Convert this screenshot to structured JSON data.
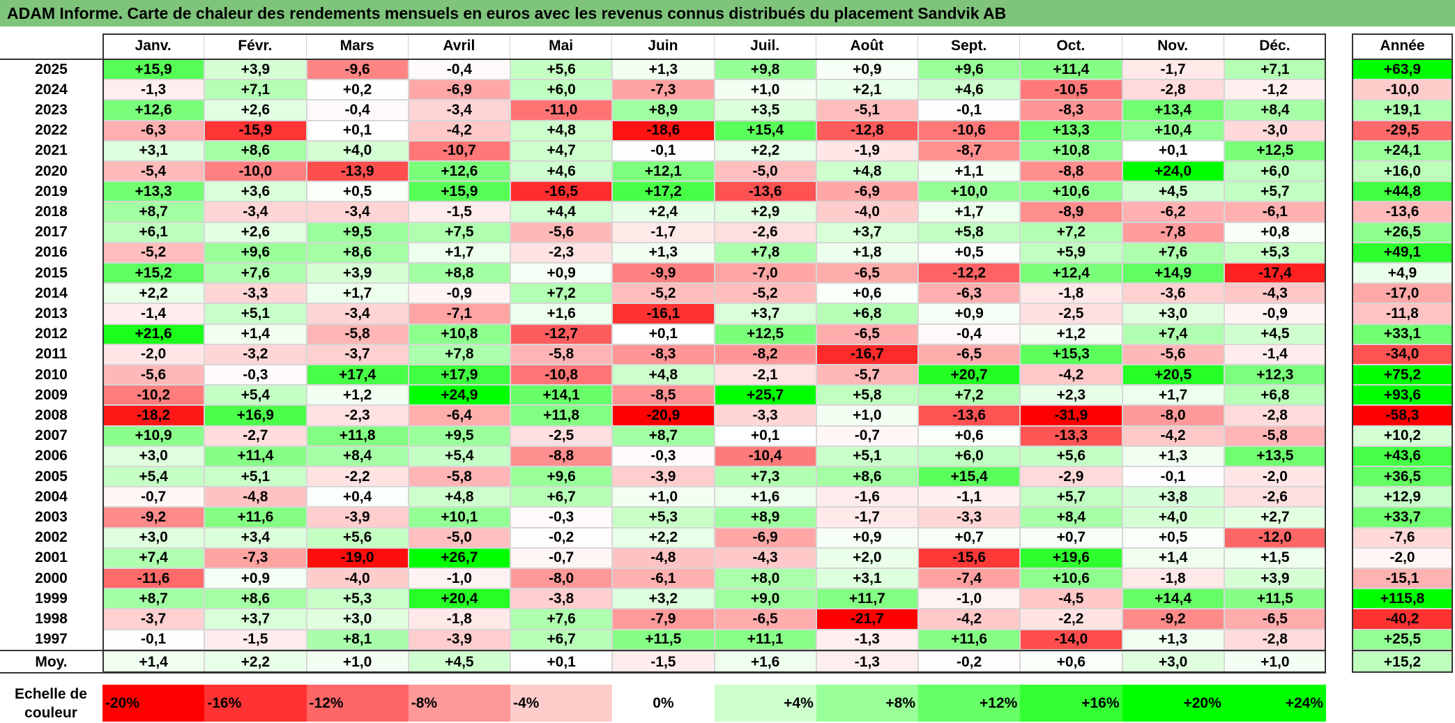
{
  "title": "ADAM Informe. Carte de chaleur des rendements mensuels en euros avec les revenus connus distribués du placement Sandvik AB",
  "chart_data": {
    "type": "heatmap",
    "title": "ADAM Informe. Carte de chaleur des rendements mensuels en euros avec les revenus connus distribués du placement Sandvik AB",
    "columns": [
      "Janv.",
      "Févr.",
      "Mars",
      "Avril",
      "Mai",
      "Juin",
      "Juil.",
      "Août",
      "Sept.",
      "Oct.",
      "Nov.",
      "Déc."
    ],
    "year_column": "Année",
    "rows": [
      {
        "year": "2025",
        "values": [
          "+15,9",
          "+3,9",
          "-9,6",
          "-0,4",
          "+5,6",
          "+1,3",
          "+9,8",
          "+0,9",
          "+9,6",
          "+11,4",
          "-1,7",
          "+7,1"
        ],
        "annual": "+63,9"
      },
      {
        "year": "2024",
        "values": [
          "-1,3",
          "+7,1",
          "+0,2",
          "-6,9",
          "+6,0",
          "-7,3",
          "+1,0",
          "+2,1",
          "+4,6",
          "-10,5",
          "-2,8",
          "-1,2"
        ],
        "annual": "-10,0"
      },
      {
        "year": "2023",
        "values": [
          "+12,6",
          "+2,6",
          "-0,4",
          "-3,4",
          "-11,0",
          "+8,9",
          "+3,5",
          "-5,1",
          "-0,1",
          "-8,3",
          "+13,4",
          "+8,4"
        ],
        "annual": "+19,1"
      },
      {
        "year": "2022",
        "values": [
          "-6,3",
          "-15,9",
          "+0,1",
          "-4,2",
          "+4,8",
          "-18,6",
          "+15,4",
          "-12,8",
          "-10,6",
          "+13,3",
          "+10,4",
          "-3,0"
        ],
        "annual": "-29,5"
      },
      {
        "year": "2021",
        "values": [
          "+3,1",
          "+8,6",
          "+4,0",
          "-10,7",
          "+4,7",
          "-0,1",
          "+2,2",
          "-1,9",
          "-8,7",
          "+10,8",
          "+0,1",
          "+12,5"
        ],
        "annual": "+24,1"
      },
      {
        "year": "2020",
        "values": [
          "-5,4",
          "-10,0",
          "-13,9",
          "+12,6",
          "+4,6",
          "+12,1",
          "-5,0",
          "+4,8",
          "+1,1",
          "-8,8",
          "+24,0",
          "+6,0"
        ],
        "annual": "+16,0"
      },
      {
        "year": "2019",
        "values": [
          "+13,3",
          "+3,6",
          "+0,5",
          "+15,9",
          "-16,5",
          "+17,2",
          "-13,6",
          "-6,9",
          "+10,0",
          "+10,6",
          "+4,5",
          "+5,7"
        ],
        "annual": "+44,8"
      },
      {
        "year": "2018",
        "values": [
          "+8,7",
          "-3,4",
          "-3,4",
          "-1,5",
          "+4,4",
          "+2,4",
          "+2,9",
          "-4,0",
          "+1,7",
          "-8,9",
          "-6,2",
          "-6,1"
        ],
        "annual": "-13,6"
      },
      {
        "year": "2017",
        "values": [
          "+6,1",
          "+2,6",
          "+9,5",
          "+7,5",
          "-5,6",
          "-1,7",
          "-2,6",
          "+3,7",
          "+5,8",
          "+7,2",
          "-7,8",
          "+0,8"
        ],
        "annual": "+26,5"
      },
      {
        "year": "2016",
        "values": [
          "-5,2",
          "+9,6",
          "+8,6",
          "+1,7",
          "-2,3",
          "+1,3",
          "+7,8",
          "+1,8",
          "+0,5",
          "+5,9",
          "+7,6",
          "+5,3"
        ],
        "annual": "+49,1"
      },
      {
        "year": "2015",
        "values": [
          "+15,2",
          "+7,6",
          "+3,9",
          "+8,8",
          "+0,9",
          "-9,9",
          "-7,0",
          "-6,5",
          "-12,2",
          "+12,4",
          "+14,9",
          "-17,4"
        ],
        "annual": "+4,9"
      },
      {
        "year": "2014",
        "values": [
          "+2,2",
          "-3,3",
          "+1,7",
          "-0,9",
          "+7,2",
          "-5,2",
          "-5,2",
          "+0,6",
          "-6,3",
          "-1,8",
          "-3,6",
          "-4,3"
        ],
        "annual": "-17,0"
      },
      {
        "year": "2013",
        "values": [
          "-1,4",
          "+5,1",
          "-3,4",
          "-7,1",
          "+1,6",
          "-16,1",
          "+3,7",
          "+6,8",
          "+0,9",
          "-2,5",
          "+3,0",
          "-0,9"
        ],
        "annual": "-11,8"
      },
      {
        "year": "2012",
        "values": [
          "+21,6",
          "+1,4",
          "-5,8",
          "+10,8",
          "-12,7",
          "+0,1",
          "+12,5",
          "-6,5",
          "-0,4",
          "+1,2",
          "+7,4",
          "+4,5"
        ],
        "annual": "+33,1"
      },
      {
        "year": "2011",
        "values": [
          "-2,0",
          "-3,2",
          "-3,7",
          "+7,8",
          "-5,8",
          "-8,3",
          "-8,2",
          "-16,7",
          "-6,5",
          "+15,3",
          "-5,6",
          "-1,4"
        ],
        "annual": "-34,0"
      },
      {
        "year": "2010",
        "values": [
          "-5,6",
          "-0,3",
          "+17,4",
          "+17,9",
          "-10,8",
          "+4,8",
          "-2,1",
          "-5,7",
          "+20,7",
          "-4,2",
          "+20,5",
          "+12,3"
        ],
        "annual": "+75,2"
      },
      {
        "year": "2009",
        "values": [
          "-10,2",
          "+5,4",
          "+1,2",
          "+24,9",
          "+14,1",
          "-8,5",
          "+25,7",
          "+5,8",
          "+7,2",
          "+2,3",
          "+1,7",
          "+6,8"
        ],
        "annual": "+93,6"
      },
      {
        "year": "2008",
        "values": [
          "-18,2",
          "+16,9",
          "-2,3",
          "-6,4",
          "+11,8",
          "-20,9",
          "-3,3",
          "+1,0",
          "-13,6",
          "-31,9",
          "-8,0",
          "-2,8"
        ],
        "annual": "-58,3"
      },
      {
        "year": "2007",
        "values": [
          "+10,9",
          "-2,7",
          "+11,8",
          "+9,5",
          "-2,5",
          "+8,7",
          "+0,1",
          "-0,7",
          "+0,6",
          "-13,3",
          "-4,2",
          "-5,8"
        ],
        "annual": "+10,2"
      },
      {
        "year": "2006",
        "values": [
          "+3,0",
          "+11,4",
          "+8,4",
          "+5,4",
          "-8,8",
          "-0,3",
          "-10,4",
          "+5,1",
          "+6,0",
          "+5,6",
          "+1,3",
          "+13,5"
        ],
        "annual": "+43,6"
      },
      {
        "year": "2005",
        "values": [
          "+5,4",
          "+5,1",
          "-2,2",
          "-5,8",
          "+9,6",
          "-3,9",
          "+7,3",
          "+8,6",
          "+15,4",
          "-2,9",
          "-0,1",
          "-2,0"
        ],
        "annual": "+36,5"
      },
      {
        "year": "2004",
        "values": [
          "-0,7",
          "-4,8",
          "+0,4",
          "+4,8",
          "+6,7",
          "+1,0",
          "+1,6",
          "-1,6",
          "-1,1",
          "+5,7",
          "+3,8",
          "-2,6"
        ],
        "annual": "+12,9"
      },
      {
        "year": "2003",
        "values": [
          "-9,2",
          "+11,6",
          "-3,9",
          "+10,1",
          "-0,3",
          "+5,3",
          "+8,9",
          "-1,7",
          "-3,3",
          "+8,4",
          "+4,0",
          "+2,7"
        ],
        "annual": "+33,7"
      },
      {
        "year": "2002",
        "values": [
          "+3,0",
          "+3,4",
          "+5,6",
          "-5,0",
          "-0,2",
          "+2,2",
          "-6,9",
          "+0,9",
          "+0,7",
          "+0,7",
          "+0,5",
          "-12,0"
        ],
        "annual": "-7,6"
      },
      {
        "year": "2001",
        "values": [
          "+7,4",
          "-7,3",
          "-19,0",
          "+26,7",
          "-0,7",
          "-4,8",
          "-4,3",
          "+2,0",
          "-15,6",
          "+19,6",
          "+1,4",
          "+1,5"
        ],
        "annual": "-2,0"
      },
      {
        "year": "2000",
        "values": [
          "-11,6",
          "+0,9",
          "-4,0",
          "-1,0",
          "-8,0",
          "-6,1",
          "+8,0",
          "+3,1",
          "-7,4",
          "+10,6",
          "-1,8",
          "+3,9"
        ],
        "annual": "-15,1"
      },
      {
        "year": "1999",
        "values": [
          "+8,7",
          "+8,6",
          "+5,3",
          "+20,4",
          "-3,8",
          "+3,2",
          "+9,0",
          "+11,7",
          "-1,0",
          "-4,5",
          "+14,4",
          "+11,5"
        ],
        "annual": "+115,8"
      },
      {
        "year": "1998",
        "values": [
          "-3,7",
          "+3,7",
          "+3,0",
          "-1,8",
          "+7,6",
          "-7,9",
          "-6,5",
          "-21,7",
          "-4,2",
          "-2,2",
          "-9,2",
          "-6,5"
        ],
        "annual": "-40,2"
      },
      {
        "year": "1997",
        "values": [
          "-0,1",
          "-1,5",
          "+8,1",
          "-3,9",
          "+6,7",
          "+11,5",
          "+11,1",
          "-1,3",
          "+11,6",
          "-14,0",
          "+1,3",
          "-2,8"
        ],
        "annual": "+25,5"
      }
    ],
    "average": {
      "label": "Moy.",
      "values": [
        "+1,4",
        "+2,2",
        "+1,0",
        "+4,5",
        "+0,1",
        "-1,5",
        "+1,6",
        "-1,3",
        "-0,2",
        "+0,6",
        "+3,0",
        "+1,0"
      ],
      "annual": "+15,2"
    },
    "color_scale": {
      "label": "Echelle de couleur",
      "stops": [
        "-20%",
        "-16%",
        "-12%",
        "-8%",
        "-4%",
        "0%",
        "+4%",
        "+8%",
        "+12%",
        "+16%",
        "+20%",
        "+24%"
      ],
      "colors": [
        "#ff0000",
        "#ff3333",
        "#ff6666",
        "#ff9999",
        "#ffcccc",
        "#ffffff",
        "#ccffcc",
        "#99ff99",
        "#66ff66",
        "#33ff33",
        "#00ff00",
        "#00ff00"
      ],
      "negative_color": "#ff0000",
      "positive_color": "#00ff00",
      "negative_saturation": -20,
      "positive_saturation": 24
    }
  }
}
